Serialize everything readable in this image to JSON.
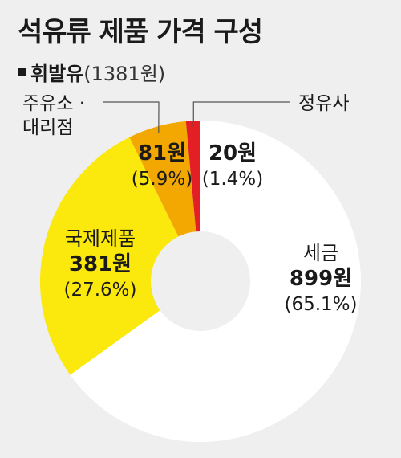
{
  "title": "석유류 제품 가격 구성",
  "subtitle": {
    "product": "휘발유",
    "price": "(1381원)"
  },
  "chart_data": {
    "type": "pie",
    "style": "donut",
    "title": "석유류 제품 가격 구성",
    "subtitle": "휘발유(1381원)",
    "total": 1381,
    "slices": [
      {
        "key": "tax",
        "label": "세금",
        "amount_label": "899원",
        "pct_label": "(65.1%)",
        "value": 899,
        "percent": 65.1,
        "color": "#ffffff",
        "label_color": "#1a1a1a"
      },
      {
        "key": "intl",
        "label": "국제제품",
        "amount_label": "381원",
        "pct_label": "(27.6%)",
        "value": 381,
        "percent": 27.6,
        "color": "#fbe80c",
        "label_color": "#1a1a1a"
      },
      {
        "key": "gas",
        "label_line1": "주유소 ·",
        "label_line2": "대리점",
        "amount_label": "81원",
        "pct_label": "(5.9%)",
        "value": 81,
        "percent": 5.9,
        "color": "#f2a800",
        "label_color": "#1a1a1a"
      },
      {
        "key": "refinery",
        "label": "정유사",
        "amount_label": "20원",
        "pct_label": "(1.4%)",
        "value": 20,
        "percent": 1.4,
        "color": "#e31e24",
        "label_color": "#1a1a1a"
      }
    ]
  }
}
